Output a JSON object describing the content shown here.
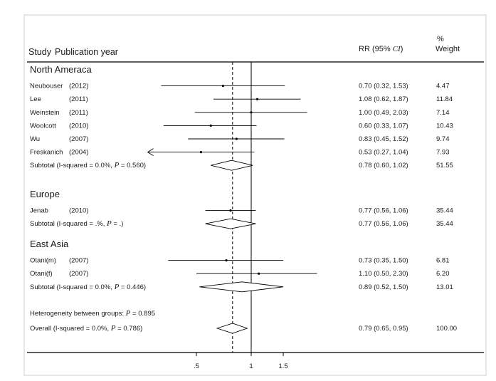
{
  "chart_data": {
    "type": "forest",
    "headers": {
      "study": "Study",
      "year": "Publication year",
      "rr": "RR (95%",
      "ci": "CI",
      "rr_close": ")",
      "pct": "%",
      "weight": "Weight"
    },
    "x_axis": {
      "ticks": [
        {
          "value": 0.5,
          "label": ".5"
        },
        {
          "value": 1,
          "label": "1"
        },
        {
          "value": 1.5,
          "label": "1.5"
        }
      ],
      "null_line": 1,
      "overall_line": 0.79
    },
    "groups": [
      {
        "name": "North Ameraca",
        "studies": [
          {
            "study": "Neubouser",
            "year": "(2012)",
            "rr": 0.7,
            "lo": 0.32,
            "hi": 1.53,
            "rr_text": "0.70 (0.32, 1.53)",
            "weight_text": "4.47"
          },
          {
            "study": "Lee",
            "year": "(2011)",
            "rr": 1.08,
            "lo": 0.62,
            "hi": 1.87,
            "rr_text": "1.08 (0.62, 1.87)",
            "weight_text": "11.84"
          },
          {
            "study": "Weinstein",
            "year": "(2011)",
            "rr": 1.0,
            "lo": 0.49,
            "hi": 2.03,
            "rr_text": "1.00 (0.49, 2.03)",
            "weight_text": "7.14"
          },
          {
            "study": "Woolcott",
            "year": "(2010)",
            "rr": 0.6,
            "lo": 0.33,
            "hi": 1.07,
            "rr_text": "0.60 (0.33, 1.07)",
            "weight_text": "10.43"
          },
          {
            "study": "Wu",
            "year": "(2007)",
            "rr": 0.83,
            "lo": 0.45,
            "hi": 1.52,
            "rr_text": "0.83 (0.45, 1.52)",
            "weight_text": "9.74"
          },
          {
            "study": "Freskanich",
            "year": "(2004)",
            "rr": 0.53,
            "lo": 0.27,
            "hi": 1.04,
            "rr_text": "0.53 (0.27, 1.04)",
            "weight_text": "7.93",
            "arrow_left": true
          }
        ],
        "subtotal": {
          "label": "Subtotal  (I-squared = 0.0%, ",
          "p_sym": "P",
          "p_text": " = 0.560)",
          "rr": 0.78,
          "lo": 0.6,
          "hi": 1.02,
          "rr_text": "0.78 (0.60, 1.02)",
          "weight_text": "51.55"
        }
      },
      {
        "name": "Europe",
        "studies": [
          {
            "study": "Jenab",
            "year": "(2010)",
            "rr": 0.77,
            "lo": 0.56,
            "hi": 1.06,
            "rr_text": "0.77 (0.56, 1.06)",
            "weight_text": "35.44"
          }
        ],
        "subtotal": {
          "label": "Subtotal  (I-squared = .%, ",
          "p_sym": "P",
          "p_text": " = .)",
          "rr": 0.77,
          "lo": 0.56,
          "hi": 1.06,
          "rr_text": "0.77 (0.56, 1.06)",
          "weight_text": "35.44"
        }
      },
      {
        "name": "East Asia",
        "studies": [
          {
            "study": "Otani(m)",
            "year": "(2007)",
            "rr": 0.73,
            "lo": 0.35,
            "hi": 1.5,
            "rr_text": "0.73 (0.35, 1.50)",
            "weight_text": "6.81"
          },
          {
            "study": "Otani(f)",
            "year": "(2007)",
            "rr": 1.1,
            "lo": 0.5,
            "hi": 2.3,
            "rr_text": "1.10 (0.50, 2.30)",
            "weight_text": "6.20"
          }
        ],
        "subtotal": {
          "label": "Subtotal  (I-squared = 0.0%, ",
          "p_sym": "P",
          "p_text": " = 0.446)",
          "rr": 0.89,
          "lo": 0.52,
          "hi": 1.5,
          "rr_text": "0.89 (0.52, 1.50)",
          "weight_text": "13.01"
        }
      }
    ],
    "heterogeneity": {
      "label": "Heterogeneity between groups: ",
      "p_sym": "P",
      "p_text": " = 0.895"
    },
    "overall": {
      "label": "Overall  (I-squared = 0.0%, ",
      "p_sym": "P",
      "p_text": " = 0.786)",
      "rr": 0.79,
      "lo": 0.65,
      "hi": 0.95,
      "rr_text": "0.79 (0.65, 0.95)",
      "weight_text": "100.00"
    }
  }
}
